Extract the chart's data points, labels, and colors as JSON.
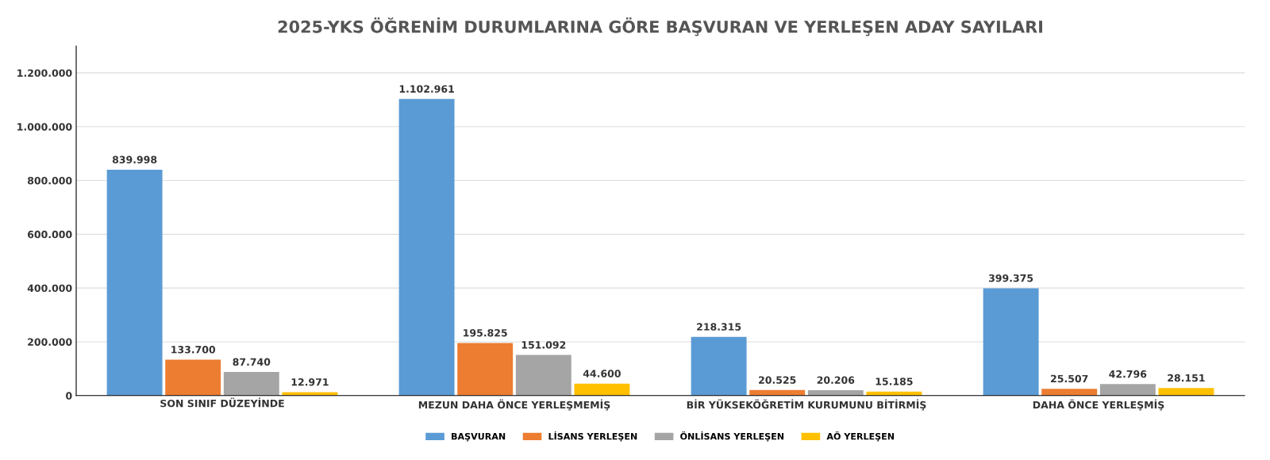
{
  "chart_data": {
    "type": "bar",
    "title": "2025-YKS ÖĞRENİM DURUMLARINA GÖRE BAŞVURAN VE YERLEŞEN ADAY SAYILARI",
    "categories": [
      "SON SINIF DÜZEYİNDE",
      "MEZUN DAHA ÖNCE YERLEŞMEMİŞ",
      "BİR YÜKSEKÖĞRETİM KURUMUNU BİTİRMİŞ",
      "DAHA ÖNCE YERLEŞMİŞ"
    ],
    "series": [
      {
        "name": "BAŞVURAN",
        "color": "#5b9bd5",
        "values": [
          839998,
          1102961,
          218315,
          399375
        ],
        "value_labels": [
          "839.998",
          "1.102.961",
          "218.315",
          "399.375"
        ]
      },
      {
        "name": "LİSANS YERLEŞEN",
        "color": "#ed7d31",
        "values": [
          133700,
          195825,
          20525,
          25507
        ],
        "value_labels": [
          "133.700",
          "195.825",
          "20.525",
          "25.507"
        ]
      },
      {
        "name": "ÖNLİSANS YERLEŞEN",
        "color": "#a5a5a5",
        "values": [
          87740,
          151092,
          20206,
          42796
        ],
        "value_labels": [
          "87.740",
          "151.092",
          "20.206",
          "42.796"
        ]
      },
      {
        "name": "AÖ YERLEŞEN",
        "color": "#ffc000",
        "values": [
          12971,
          44600,
          15185,
          28151
        ],
        "value_labels": [
          "12.971",
          "44.600",
          "15.185",
          "28.151"
        ]
      }
    ],
    "ylim": [
      0,
      1300000
    ],
    "yticks": [
      {
        "value": 0,
        "label": "0"
      },
      {
        "value": 200000,
        "label": "200.000"
      },
      {
        "value": 400000,
        "label": "400.000"
      },
      {
        "value": 600000,
        "label": "600.000"
      },
      {
        "value": 800000,
        "label": "800.000"
      },
      {
        "value": 1000000,
        "label": "1.000.000"
      },
      {
        "value": 1200000,
        "label": "1.200.000"
      }
    ],
    "grid": "y",
    "legend": "bottom"
  }
}
